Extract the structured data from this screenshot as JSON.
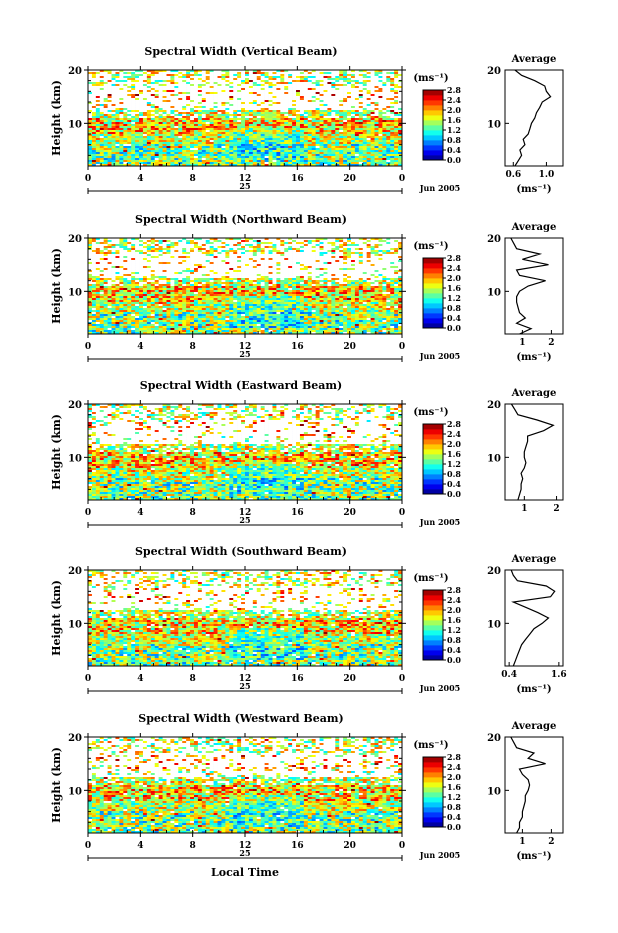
{
  "chart_data": [
    {
      "type": "heatmap",
      "title": "Spectral Width (Vertical Beam)",
      "ylabel": "Height (km)",
      "y_ticks": [
        "20",
        "10"
      ],
      "x_ticks": [
        "0",
        "4",
        "8",
        "12",
        "16",
        "20",
        "0"
      ],
      "day_label": "25",
      "date_label": "Jun 2005",
      "colorbar": {
        "unit": "(ms⁻¹)",
        "ticks": [
          "2.8",
          "2.4",
          "2.0",
          "1.6",
          "1.2",
          "0.8",
          "0.4",
          "0.0"
        ],
        "range": [
          0,
          2.8
        ]
      },
      "average_profile": {
        "title": "Average",
        "xlabel": "(ms⁻¹)",
        "x_ticks": [
          "0.6",
          "1.0"
        ],
        "xlim": [
          0.5,
          1.2
        ],
        "y_ticks": [
          "20",
          "10"
        ],
        "height_km": [
          2,
          3,
          4,
          5,
          6,
          7,
          8,
          9,
          10,
          11,
          12,
          13,
          14,
          15,
          16,
          17,
          18,
          19,
          20
        ],
        "values": [
          0.62,
          0.66,
          0.7,
          0.68,
          0.74,
          0.72,
          0.78,
          0.8,
          0.82,
          0.86,
          0.88,
          0.92,
          0.95,
          1.05,
          1.0,
          0.98,
          0.86,
          0.7,
          0.62
        ]
      }
    },
    {
      "type": "heatmap",
      "title": "Spectral Width (Northward Beam)",
      "ylabel": "Height (km)",
      "y_ticks": [
        "20",
        "10"
      ],
      "x_ticks": [
        "0",
        "4",
        "8",
        "12",
        "16",
        "20",
        "0"
      ],
      "day_label": "25",
      "date_label": "Jun 2005",
      "colorbar": {
        "unit": "(ms⁻¹)",
        "ticks": [
          "2.8",
          "2.4",
          "2.0",
          "1.6",
          "1.2",
          "0.8",
          "0.4",
          "0.0"
        ],
        "range": [
          0,
          2.8
        ]
      },
      "average_profile": {
        "title": "Average",
        "xlabel": "(ms⁻¹)",
        "x_ticks": [
          "1",
          "2"
        ],
        "xlim": [
          0.4,
          2.4
        ],
        "y_ticks": [
          "20",
          "10"
        ],
        "height_km": [
          2,
          3,
          4,
          5,
          6,
          7,
          8,
          9,
          10,
          11,
          12,
          13,
          14,
          15,
          16,
          17,
          18,
          19,
          20
        ],
        "values": [
          0.9,
          1.3,
          0.8,
          1.1,
          0.9,
          0.85,
          0.8,
          0.8,
          0.9,
          1.2,
          1.8,
          0.9,
          0.8,
          1.9,
          1.0,
          1.6,
          0.8,
          0.7,
          0.6
        ]
      }
    },
    {
      "type": "heatmap",
      "title": "Spectral Width (Eastward Beam)",
      "ylabel": "Height (km)",
      "y_ticks": [
        "20",
        "10"
      ],
      "x_ticks": [
        "0",
        "4",
        "8",
        "12",
        "16",
        "20",
        "0"
      ],
      "day_label": "25",
      "date_label": "Jun 2005",
      "colorbar": {
        "unit": "(ms⁻¹)",
        "ticks": [
          "2.8",
          "2.4",
          "2.0",
          "1.6",
          "1.2",
          "0.8",
          "0.4",
          "0.0"
        ],
        "range": [
          0,
          2.8
        ]
      },
      "average_profile": {
        "title": "Average",
        "xlabel": "",
        "x_ticks": [
          "1",
          "2"
        ],
        "xlim": [
          0.4,
          2.2
        ],
        "y_ticks": [
          "20",
          "10"
        ],
        "height_km": [
          2,
          3,
          4,
          5,
          6,
          7,
          8,
          9,
          10,
          11,
          12,
          13,
          14,
          15,
          16,
          17,
          18,
          19,
          20
        ],
        "values": [
          0.8,
          0.85,
          0.9,
          0.9,
          0.95,
          0.9,
          1.0,
          1.05,
          1.0,
          1.0,
          1.05,
          1.1,
          1.1,
          1.6,
          1.9,
          1.4,
          0.8,
          0.7,
          0.6
        ]
      }
    },
    {
      "type": "heatmap",
      "title": "Spectral Width (Southward Beam)",
      "ylabel": "Height (km)",
      "y_ticks": [
        "20",
        "10"
      ],
      "x_ticks": [
        "0",
        "4",
        "8",
        "12",
        "16",
        "20",
        "0"
      ],
      "day_label": "25",
      "date_label": "Jun 2005",
      "colorbar": {
        "unit": "(ms⁻¹)",
        "ticks": [
          "2.8",
          "2.4",
          "2.0",
          "1.6",
          "1.2",
          "0.8",
          "0.4",
          "0.0"
        ],
        "range": [
          0,
          2.8
        ]
      },
      "average_profile": {
        "title": "Average",
        "xlabel": "(ms⁻¹)",
        "x_ticks": [
          "0.4",
          "1.6"
        ],
        "xlim": [
          0.3,
          1.7
        ],
        "y_ticks": [
          "20",
          "10"
        ],
        "height_km": [
          2,
          3,
          4,
          5,
          6,
          7,
          8,
          9,
          10,
          11,
          12,
          13,
          14,
          15,
          16,
          17,
          18,
          19,
          20
        ],
        "values": [
          0.5,
          0.55,
          0.6,
          0.65,
          0.7,
          0.8,
          0.9,
          1.0,
          1.2,
          1.35,
          1.1,
          0.8,
          0.5,
          1.4,
          1.5,
          1.3,
          0.6,
          0.5,
          0.45
        ]
      }
    },
    {
      "type": "heatmap",
      "title": "Spectral Width (Westward Beam)",
      "ylabel": "Height (km)",
      "y_ticks": [
        "20",
        "10"
      ],
      "x_ticks": [
        "0",
        "4",
        "8",
        "12",
        "16",
        "20",
        "0"
      ],
      "day_label": "25",
      "date_label": "Jun 2005",
      "xlabel": "Local Time",
      "colorbar": {
        "unit": "(ms⁻¹)",
        "ticks": [
          "2.8",
          "2.4",
          "2.0",
          "1.6",
          "1.2",
          "0.8",
          "0.4",
          "0.0"
        ],
        "range": [
          0,
          2.8
        ]
      },
      "average_profile": {
        "title": "Average",
        "xlabel": "(ms⁻¹)",
        "x_ticks": [
          "1",
          "2"
        ],
        "xlim": [
          0.4,
          2.4
        ],
        "y_ticks": [
          "20",
          "10"
        ],
        "height_km": [
          2,
          3,
          4,
          5,
          6,
          7,
          8,
          9,
          10,
          11,
          12,
          13,
          14,
          15,
          16,
          17,
          18,
          19,
          20
        ],
        "values": [
          0.8,
          0.9,
          0.9,
          1.0,
          1.0,
          1.05,
          1.1,
          1.1,
          1.2,
          1.25,
          1.2,
          1.0,
          0.9,
          1.8,
          1.2,
          1.4,
          0.8,
          0.7,
          0.6
        ]
      }
    }
  ]
}
